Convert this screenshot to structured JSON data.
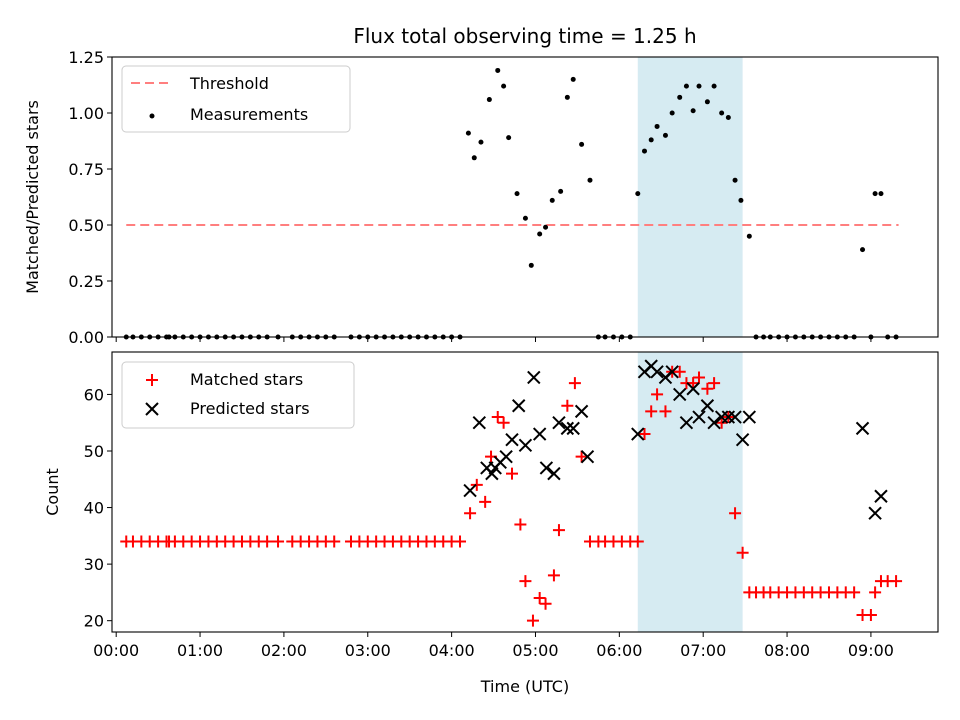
{
  "chart_data": {
    "type": "scatter",
    "title": "Flux total observing time = 1.25 h",
    "xlabel": "Time (UTC)",
    "x_ticks": [
      "00:00",
      "01:00",
      "02:00",
      "03:00",
      "04:00",
      "05:00",
      "06:00",
      "07:00",
      "08:00",
      "09:00"
    ],
    "xlim_hours": [
      -0.05,
      9.8
    ],
    "shaded_interval_hours": [
      6.22,
      7.47
    ],
    "shade_color": "#add8e6",
    "panels": [
      {
        "ylabel": "Matched/Predicted stars",
        "ylim": [
          0,
          1.25
        ],
        "yticks": [
          "0.00",
          "0.25",
          "0.50",
          "0.75",
          "1.00",
          "1.25"
        ],
        "ytick_values": [
          0,
          0.25,
          0.5,
          0.75,
          1.0,
          1.25
        ],
        "legend": [
          "Threshold",
          "Measurements"
        ],
        "threshold": {
          "name": "Threshold",
          "value": 0.5,
          "x_range": [
            0.12,
            9.33
          ],
          "color": "#ff7f7f"
        },
        "measurements": {
          "name": "Measurements",
          "color": "#000000",
          "x": [
            0.12,
            0.2,
            0.3,
            0.4,
            0.5,
            0.6,
            0.63,
            0.7,
            0.8,
            0.9,
            1.0,
            1.1,
            1.2,
            1.3,
            1.4,
            1.5,
            1.6,
            1.7,
            1.8,
            1.93,
            2.1,
            2.2,
            2.3,
            2.4,
            2.5,
            2.6,
            2.8,
            2.9,
            3.0,
            3.1,
            3.2,
            3.3,
            3.4,
            3.5,
            3.6,
            3.7,
            3.8,
            3.9,
            4.0,
            4.1,
            4.2,
            4.27,
            4.35,
            4.45,
            4.55,
            4.62,
            4.68,
            4.78,
            4.88,
            4.95,
            5.05,
            5.12,
            5.2,
            5.3,
            5.38,
            5.45,
            5.55,
            5.65,
            5.75,
            5.83,
            5.93,
            6.03,
            6.13,
            6.22,
            6.3,
            6.38,
            6.45,
            6.55,
            6.63,
            6.72,
            6.8,
            6.88,
            6.95,
            7.05,
            7.13,
            7.22,
            7.3,
            7.38,
            7.45,
            7.55,
            7.63,
            7.72,
            7.8,
            7.9,
            8.0,
            8.1,
            8.2,
            8.3,
            8.4,
            8.5,
            8.6,
            8.7,
            8.8,
            8.9,
            9.0,
            9.05,
            9.12,
            9.2,
            9.3
          ],
          "y": [
            0,
            0,
            0,
            0,
            0,
            0,
            0,
            0,
            0,
            0,
            0,
            0,
            0,
            0,
            0,
            0,
            0,
            0,
            0,
            0,
            0,
            0,
            0,
            0,
            0,
            0,
            0,
            0,
            0,
            0,
            0,
            0,
            0,
            0,
            0,
            0,
            0,
            0,
            0,
            0,
            0.91,
            0.8,
            0.87,
            1.06,
            1.19,
            1.12,
            0.89,
            0.64,
            0.53,
            0.32,
            0.46,
            0.49,
            0.61,
            0.65,
            1.07,
            1.15,
            0.86,
            0.7,
            0,
            0,
            0,
            0,
            0,
            0.64,
            0.83,
            0.88,
            0.94,
            0.9,
            1.0,
            1.07,
            1.12,
            1.01,
            1.12,
            1.05,
            1.12,
            1.0,
            0.98,
            0.7,
            0.61,
            0.45,
            0,
            0,
            0,
            0,
            0,
            0,
            0,
            0,
            0,
            0,
            0,
            0,
            0,
            0.39,
            0,
            0.64,
            0.64,
            0,
            0
          ]
        }
      },
      {
        "ylabel": "Count",
        "ylim": [
          18,
          67.5
        ],
        "yticks": [
          "20",
          "30",
          "40",
          "50",
          "60"
        ],
        "ytick_values": [
          20,
          30,
          40,
          50,
          60
        ],
        "legend": [
          "Matched stars",
          "Predicted stars"
        ],
        "matched": {
          "name": "Matched stars",
          "color": "#ff0000",
          "x": [
            0.12,
            0.2,
            0.3,
            0.4,
            0.5,
            0.6,
            0.63,
            0.7,
            0.8,
            0.9,
            1.0,
            1.1,
            1.2,
            1.3,
            1.4,
            1.5,
            1.6,
            1.7,
            1.8,
            1.93,
            2.1,
            2.2,
            2.3,
            2.4,
            2.5,
            2.6,
            2.8,
            2.9,
            3.0,
            3.1,
            3.2,
            3.3,
            3.4,
            3.5,
            3.6,
            3.7,
            3.8,
            3.9,
            4.0,
            4.1,
            4.22,
            4.3,
            4.4,
            4.47,
            4.55,
            4.62,
            4.72,
            4.82,
            4.88,
            4.97,
            5.05,
            5.12,
            5.22,
            5.28,
            5.38,
            5.47,
            5.55,
            5.65,
            5.75,
            5.83,
            5.93,
            6.03,
            6.13,
            6.22,
            6.3,
            6.38,
            6.45,
            6.55,
            6.63,
            6.72,
            6.8,
            6.88,
            6.95,
            7.05,
            7.13,
            7.22,
            7.3,
            7.38,
            7.47,
            7.55,
            7.63,
            7.72,
            7.8,
            7.9,
            8.0,
            8.1,
            8.2,
            8.3,
            8.4,
            8.5,
            8.6,
            8.7,
            8.8,
            8.9,
            9.0,
            9.05,
            9.12,
            9.2,
            9.3
          ],
          "y": [
            34,
            34,
            34,
            34,
            34,
            34,
            34,
            34,
            34,
            34,
            34,
            34,
            34,
            34,
            34,
            34,
            34,
            34,
            34,
            34,
            34,
            34,
            34,
            34,
            34,
            34,
            34,
            34,
            34,
            34,
            34,
            34,
            34,
            34,
            34,
            34,
            34,
            34,
            34,
            34,
            39,
            44,
            41,
            49,
            56,
            55,
            46,
            37,
            27,
            20,
            24,
            23,
            28,
            36,
            58,
            62,
            49,
            34,
            34,
            34,
            34,
            34,
            34,
            34,
            53,
            57,
            60,
            57,
            64,
            64,
            62,
            62,
            63,
            61,
            62,
            55,
            56,
            39,
            32,
            25,
            25,
            25,
            25,
            25,
            25,
            25,
            25,
            25,
            25,
            25,
            25,
            25,
            25,
            21,
            21,
            25,
            27,
            27,
            27
          ]
        },
        "predicted": {
          "name": "Predicted stars",
          "color": "#000000",
          "x": [
            4.22,
            4.33,
            4.42,
            4.48,
            4.52,
            4.58,
            4.65,
            4.72,
            4.8,
            4.88,
            4.98,
            5.05,
            5.13,
            5.22,
            5.28,
            5.38,
            5.45,
            5.55,
            5.62,
            6.22,
            6.3,
            6.38,
            6.45,
            6.55,
            6.63,
            6.72,
            6.8,
            6.88,
            6.95,
            7.05,
            7.13,
            7.22,
            7.3,
            7.38,
            7.47,
            7.55,
            8.9,
            9.05,
            9.12
          ],
          "y": [
            43,
            55,
            47,
            46,
            47,
            48,
            49,
            52,
            58,
            51,
            63,
            53,
            47,
            46,
            55,
            54,
            54,
            57,
            49,
            53,
            64,
            65,
            64,
            63,
            64,
            60,
            55,
            61,
            56,
            58,
            55,
            56,
            56,
            56,
            52,
            56,
            54,
            39,
            42
          ]
        }
      }
    ]
  }
}
